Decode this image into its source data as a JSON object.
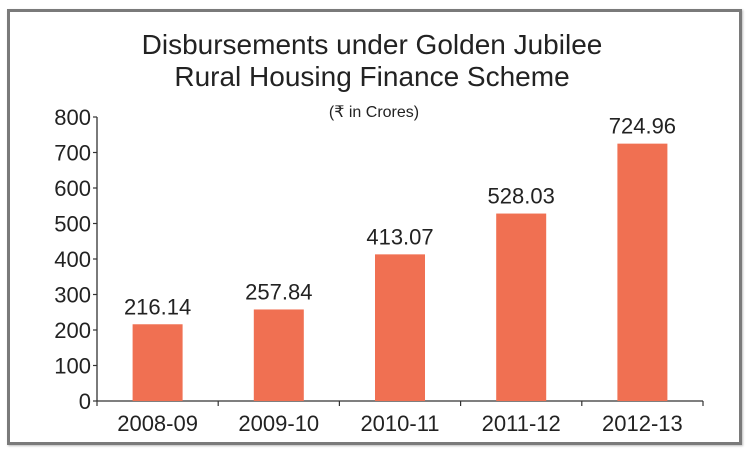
{
  "chart_data": {
    "type": "bar",
    "title": [
      "Disbursements under Golden Jubilee",
      "Rural Housing Finance Scheme"
    ],
    "subtitle": "(₹ in Crores)",
    "xlabel": "",
    "ylabel": "",
    "categories": [
      "2008-09",
      "2009-10",
      "2010-11",
      "2011-12",
      "2012-13"
    ],
    "values": [
      216.14,
      257.84,
      413.07,
      528.03,
      724.96
    ],
    "data_labels": [
      "216.14",
      "257.84",
      "413.07",
      "528.03",
      "724.96"
    ],
    "ylim": [
      0,
      800
    ],
    "yticks": [
      0,
      100,
      200,
      300,
      400,
      500,
      600,
      700,
      800
    ],
    "grid": false,
    "bar_color": "#f07052"
  }
}
